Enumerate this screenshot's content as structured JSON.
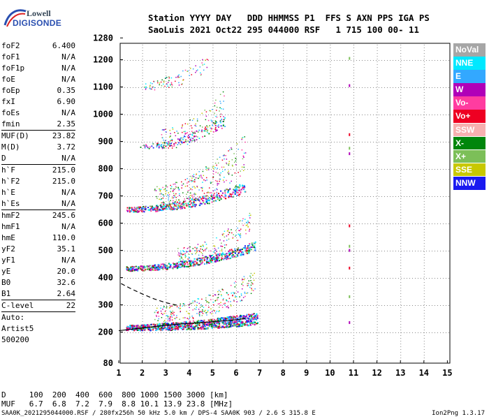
{
  "logo": {
    "line1": "Lowell",
    "line2": "DIGISONDE"
  },
  "header": {
    "line1": "Station YYYY DAY   DDD HHMMSS P1  FFS S AXN PPS IGA PS",
    "line2": "SaoLuis 2021 Oct22 295 044000 RSF   1 715 100 00- 11"
  },
  "params": [
    {
      "label": "foF2",
      "value": "6.400"
    },
    {
      "label": "foF1",
      "value": "N/A"
    },
    {
      "label": "foF1p",
      "value": "N/A"
    },
    {
      "label": "foE",
      "value": "N/A"
    },
    {
      "label": "foEp",
      "value": "0.35"
    },
    {
      "label": "fxI",
      "value": "6.90"
    },
    {
      "label": "foEs",
      "value": "N/A"
    },
    {
      "label": "fmin",
      "value": "2.35"
    },
    {
      "label": "MUF(D)",
      "value": "23.82",
      "sep": true
    },
    {
      "label": "M(D)",
      "value": "3.72"
    },
    {
      "label": "D",
      "value": "N/A"
    },
    {
      "label": "h`F",
      "value": "215.0",
      "sep": true
    },
    {
      "label": "h`F2",
      "value": "215.0"
    },
    {
      "label": "h`E",
      "value": "N/A"
    },
    {
      "label": "h`Es",
      "value": "N/A"
    },
    {
      "label": "hmF2",
      "value": "245.6",
      "sep": true
    },
    {
      "label": "hmF1",
      "value": "N/A"
    },
    {
      "label": "hmE",
      "value": "110.0"
    },
    {
      "label": "yF2",
      "value": "35.1"
    },
    {
      "label": "yF1",
      "value": "N/A"
    },
    {
      "label": "yE",
      "value": "20.0"
    },
    {
      "label": "B0",
      "value": "32.6"
    },
    {
      "label": "B1",
      "value": "2.64"
    },
    {
      "label": "C-level",
      "value": "22",
      "sep": true
    },
    {
      "label": "Auto:",
      "value": "",
      "sep": true
    },
    {
      "label": "Artist5",
      "value": ""
    },
    {
      "label": "500200",
      "value": ""
    }
  ],
  "legend": [
    {
      "label": "NoVal",
      "color": "#a6a6a6"
    },
    {
      "label": "NNE",
      "color": "#00e8ff"
    },
    {
      "label": "E",
      "color": "#33a8ff"
    },
    {
      "label": "W",
      "color": "#b000b8"
    },
    {
      "label": "Vo-",
      "color": "#ff3ca0"
    },
    {
      "label": "Vo+",
      "color": "#ee0022"
    },
    {
      "label": "SSW",
      "color": "#f7b0b0"
    },
    {
      "label": "X-",
      "color": "#00860c"
    },
    {
      "label": "X+",
      "color": "#7cbf58"
    },
    {
      "label": "SSE",
      "color": "#c8c800"
    },
    {
      "label": "NNW",
      "color": "#1a1af0"
    }
  ],
  "bottom": {
    "line1": "D     100  200  400  600  800 1000 1500 3000 [km]",
    "line2": "MUF   6.7  6.8  7.2  7.9  8.8 10.1 13.9 23.8 [MHz]"
  },
  "footer": {
    "left": "SAA0K_2021295044000.RSF / 280fx256h 50 kHz 5.0 km / DPS-4 SAA0K 903 / 2.6 S 315.8 E",
    "right": "Ion2Png 1.3.17"
  },
  "chart_data": {
    "type": "scatter",
    "title": "",
    "xlabel": "",
    "ylabel": "",
    "xlim": [
      1,
      15
    ],
    "ylim": [
      80,
      1280
    ],
    "x_ticks": [
      1,
      2,
      3,
      4,
      5,
      6,
      7,
      8,
      9,
      10,
      11,
      12,
      13,
      14,
      15
    ],
    "y_ticks": [
      80,
      200,
      300,
      400,
      500,
      600,
      700,
      800,
      900,
      1000,
      1100,
      1200,
      1280
    ],
    "grid": true,
    "traces": [
      {
        "name": "F-trace 1st hop",
        "height_range": [
          210,
          300
        ],
        "freq_range": [
          1.3,
          7.0
        ]
      },
      {
        "name": "F-trace 2nd hop",
        "height_range": [
          420,
          560
        ],
        "freq_range": [
          1.3,
          6.8
        ]
      },
      {
        "name": "F-trace 3rd hop",
        "height_range": [
          640,
          840
        ],
        "freq_range": [
          1.3,
          6.5
        ]
      },
      {
        "name": "F-trace 4th hop",
        "height_range": [
          870,
          1010
        ],
        "freq_range": [
          1.9,
          5.5
        ]
      },
      {
        "name": "F-trace 5th hop",
        "height_range": [
          1090,
          1270
        ],
        "freq_range": [
          2.0,
          4.8
        ]
      }
    ],
    "profile_curve": {
      "style": "solid",
      "x": [
        1.0,
        2.0,
        3.0,
        4.0,
        5.0,
        6.0,
        6.4
      ],
      "y": [
        205,
        215,
        225,
        232,
        238,
        245,
        250
      ]
    },
    "oblique_curve": {
      "style": "dashed",
      "x": [
        1.1,
        1.5,
        2.0,
        2.5,
        3.0,
        3.5
      ],
      "y": [
        378,
        360,
        340,
        322,
        308,
        298
      ]
    }
  }
}
